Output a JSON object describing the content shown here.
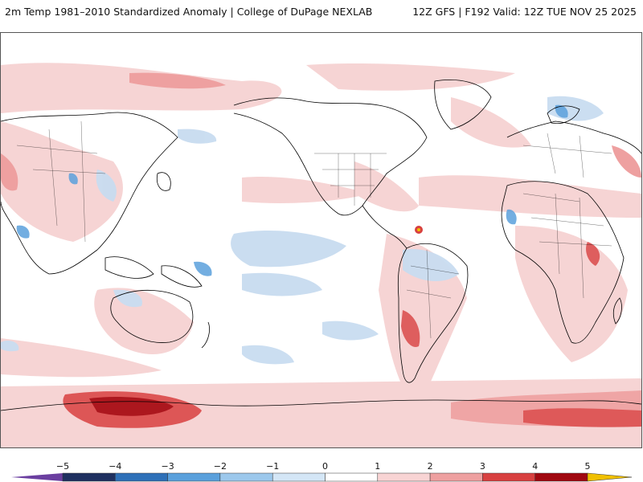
{
  "header": {
    "left_title": "2m Temp 1981–2010 Standardized Anomaly | College of DuPage NEXLAB",
    "right_title": "12Z GFS | F192 Valid: 12Z TUE NOV 25 2025"
  },
  "colorbar": {
    "ticks": [
      "−5",
      "−4",
      "−3",
      "−2",
      "−1",
      "0",
      "1",
      "2",
      "3",
      "4",
      "5"
    ],
    "colors": {
      "neg_ext": "#6b3fa0",
      "neg5": "#1f3060",
      "neg4": "#2e70b8",
      "neg3": "#5aa0dc",
      "neg2": "#9cc8ec",
      "neg1": "#d4e6f6",
      "zero_lo": "#ffffff",
      "zero_hi": "#ffffff",
      "pos1": "#f8d4d4",
      "pos2": "#eea0a0",
      "pos3": "#d84040",
      "pos4": "#a00810",
      "pos5": "#700008",
      "pos_ext": "#f0c000"
    }
  },
  "map": {
    "projection": "cylindrical, centered on Pacific",
    "land_outline_color": "#000000",
    "warm_color": "#f4c6c6",
    "warm_strong_color": "#c81e24",
    "cool_color": "#c8dcf0",
    "cool_strong_color": "#2e70b8"
  }
}
